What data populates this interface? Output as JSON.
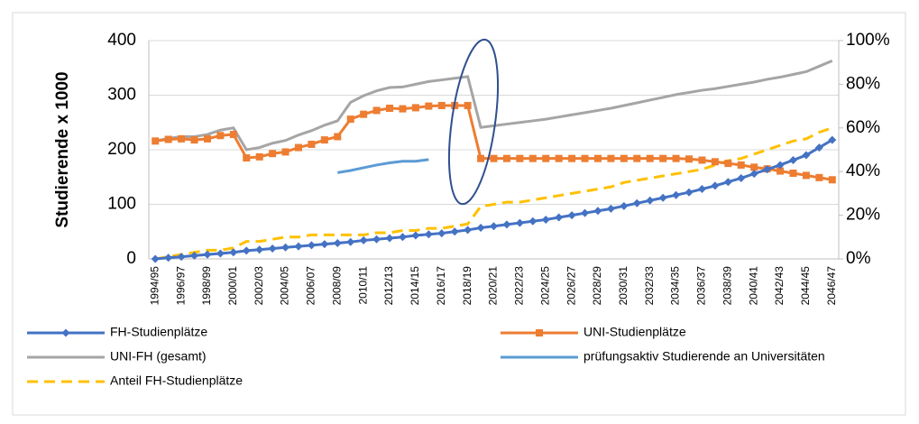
{
  "chart_data": {
    "type": "line",
    "ylabel": "Studierende x 1000",
    "categories": [
      "1994/95",
      null,
      "1996/97",
      null,
      "1998/99",
      null,
      "2000/01",
      null,
      "2002/03",
      null,
      "2004/05",
      null,
      "2006/07",
      null,
      "2008/09",
      null,
      "2010/11",
      null,
      "2012/13",
      null,
      "2014/15",
      null,
      "2016/17",
      null,
      "2018/19",
      null,
      "2020/21",
      null,
      "2022/23",
      null,
      "2024/25",
      null,
      "2026/27",
      null,
      "2028/29",
      null,
      "2030/31",
      null,
      "2032/33",
      null,
      "2034/35",
      null,
      "2036/37",
      null,
      "2038/39",
      null,
      "2040/41",
      null,
      "2042/43",
      null,
      "2044/45",
      null,
      "2046/47"
    ],
    "series": [
      {
        "name": "FH-Studienplätze",
        "color": "#4472c4",
        "marker": "diamond",
        "values": [
          0,
          2,
          4,
          6,
          8,
          10,
          12,
          15,
          17,
          19,
          21,
          23,
          25,
          27,
          29,
          31,
          34,
          36,
          38,
          40,
          43,
          45,
          47,
          50,
          53,
          57,
          60,
          63,
          66,
          69,
          72,
          76,
          80,
          84,
          88,
          92,
          97,
          102,
          107,
          112,
          117,
          122,
          128,
          134,
          141,
          148,
          156,
          164,
          172,
          181,
          190,
          204,
          218
        ]
      },
      {
        "name": "UNI-Studienplätze",
        "color": "#ed7d31",
        "marker": "square",
        "values": [
          216,
          219,
          220,
          218,
          220,
          226,
          228,
          185,
          187,
          193,
          196,
          204,
          210,
          218,
          224,
          256,
          265,
          272,
          276,
          275,
          277,
          280,
          281,
          281,
          281,
          184,
          184,
          184,
          184,
          184,
          184,
          184,
          184,
          184,
          184,
          184,
          184,
          184,
          184,
          184,
          184,
          183,
          181,
          178,
          175,
          172,
          168,
          165,
          161,
          157,
          153,
          149,
          145
        ]
      },
      {
        "name": "UNI-FH (gesamt)",
        "color": "#a5a5a5",
        "values": [
          216,
          221,
          224,
          224,
          228,
          236,
          240,
          200,
          204,
          212,
          217,
          227,
          235,
          245,
          253,
          287,
          299,
          308,
          314,
          315,
          320,
          325,
          328,
          331,
          334,
          241,
          244,
          247,
          250,
          253,
          256,
          260,
          264,
          268,
          272,
          276,
          281,
          286,
          291,
          296,
          301,
          305,
          309,
          312,
          316,
          320,
          324,
          329,
          333,
          338,
          343,
          353,
          363
        ]
      },
      {
        "name": "prüfungsaktiv Studierende an Universitäten",
        "color": "#5b9bd5",
        "values": [
          null,
          null,
          null,
          null,
          null,
          null,
          null,
          null,
          null,
          null,
          null,
          null,
          null,
          null,
          158,
          162,
          167,
          172,
          176,
          179,
          179,
          182,
          null,
          null,
          null,
          null,
          null,
          null,
          null,
          null,
          null,
          null,
          null,
          null,
          null,
          null,
          null,
          null,
          null,
          null,
          null,
          null,
          null,
          null,
          null,
          null,
          null,
          null,
          null,
          null,
          null,
          null,
          null
        ]
      },
      {
        "name": "Anteil FH-Studienplätze",
        "color": "#ffc000",
        "dashed": true,
        "axis": "y2",
        "values": [
          0,
          1,
          2,
          3,
          4,
          4,
          5,
          8,
          8,
          9,
          10,
          10,
          11,
          11,
          11,
          11,
          11,
          12,
          12,
          13,
          13,
          14,
          14,
          15,
          16,
          24,
          25,
          26,
          26,
          27,
          28,
          29,
          30,
          31,
          32,
          33,
          35,
          36,
          37,
          38,
          39,
          40,
          41,
          43,
          45,
          46,
          48,
          50,
          52,
          54,
          55,
          58,
          60
        ]
      }
    ],
    "ylim": [
      0,
      400
    ],
    "yticks": [
      0,
      100,
      200,
      300,
      400
    ],
    "y2lim": [
      0,
      100
    ],
    "y2ticks": [
      {
        "value": 0,
        "label": "0%"
      },
      {
        "value": 20,
        "label": "20%"
      },
      {
        "value": 40,
        "label": "40%"
      },
      {
        "value": 60,
        "label": "60%"
      },
      {
        "value": 80,
        "label": "80%"
      },
      {
        "value": 100,
        "label": "100%"
      }
    ],
    "grid": true,
    "legend": "bottom"
  }
}
